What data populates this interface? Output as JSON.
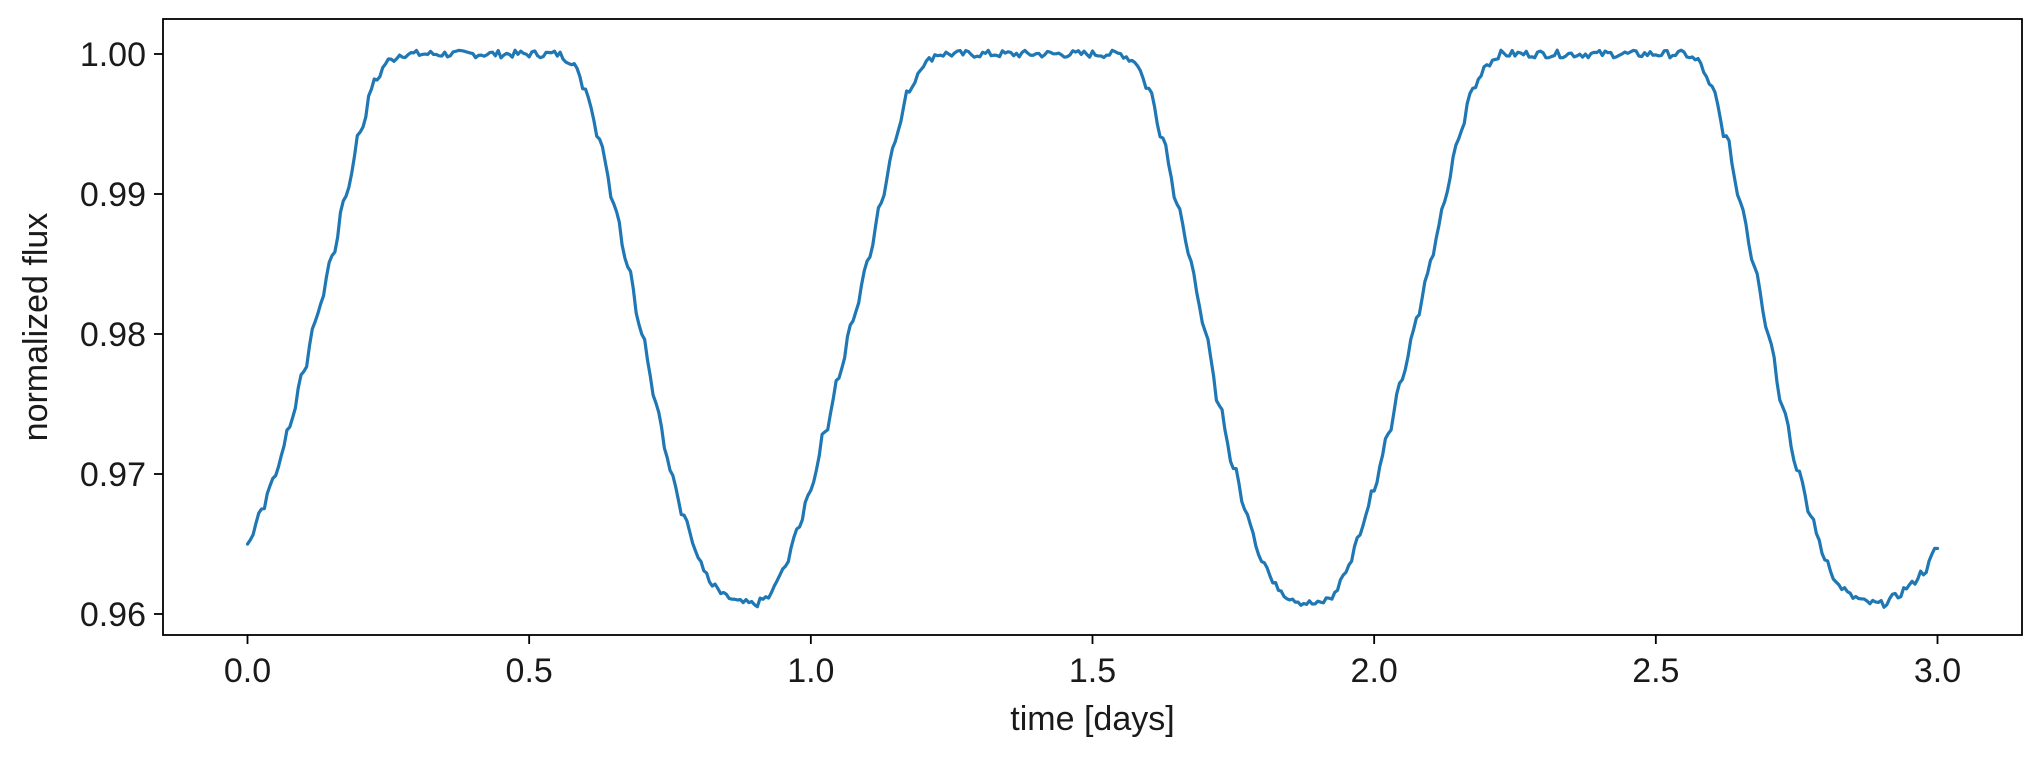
{
  "chart_data": {
    "type": "line",
    "title": "",
    "xlabel": "time [days]",
    "ylabel": "normalized flux",
    "xlim": [
      -0.15,
      3.15
    ],
    "ylim": [
      0.9585,
      1.0025
    ],
    "x_ticks": [
      0.0,
      0.5,
      1.0,
      1.5,
      2.0,
      2.5,
      3.0
    ],
    "x_tick_labels": [
      "0.0",
      "0.5",
      "1.0",
      "1.5",
      "2.0",
      "2.5",
      "3.0"
    ],
    "y_ticks": [
      0.96,
      0.97,
      0.98,
      0.99,
      1.0
    ],
    "y_tick_labels": [
      "0.96",
      "0.97",
      "0.98",
      "0.99",
      "1.00"
    ],
    "grid": false,
    "legend": "none",
    "line_color": "#1f77b4",
    "series": [
      {
        "x": [
          0.0,
          0.025,
          0.05,
          0.075,
          0.1,
          0.125,
          0.15,
          0.175,
          0.2,
          0.225,
          0.25,
          0.275,
          0.3,
          0.35,
          0.4,
          0.45,
          0.5,
          0.55,
          0.575,
          0.6,
          0.625,
          0.65,
          0.675,
          0.7,
          0.725,
          0.75,
          0.775,
          0.8,
          0.825,
          0.85,
          0.875,
          0.9,
          0.925,
          0.95,
          0.975,
          1.0,
          1.025,
          1.05,
          1.075,
          1.1,
          1.125,
          1.15,
          1.175,
          1.2,
          1.225,
          1.25,
          1.275,
          1.3,
          1.35,
          1.4,
          1.45,
          1.5,
          1.55,
          1.575,
          1.6,
          1.625,
          1.65,
          1.675,
          1.7,
          1.725,
          1.75,
          1.775,
          1.8,
          1.825,
          1.85,
          1.875,
          1.9,
          1.925,
          1.95,
          1.975,
          2.0,
          2.025,
          2.05,
          2.075,
          2.1,
          2.125,
          2.15,
          2.175,
          2.2,
          2.225,
          2.25,
          2.275,
          2.3,
          2.35,
          2.4,
          2.45,
          2.5,
          2.55,
          2.575,
          2.6,
          2.625,
          2.65,
          2.675,
          2.7,
          2.725,
          2.75,
          2.775,
          2.8,
          2.825,
          2.85,
          2.875,
          2.9,
          2.925,
          2.95,
          2.975,
          3.0
        ],
        "y": [
          0.965,
          0.9675,
          0.97,
          0.9735,
          0.9775,
          0.9815,
          0.9855,
          0.99,
          0.9945,
          0.998,
          0.9995,
          1.0,
          1.0,
          1.0,
          1.0,
          1.0,
          1.0,
          1.0,
          0.9995,
          0.9975,
          0.994,
          0.9895,
          0.985,
          0.98,
          0.975,
          0.9705,
          0.967,
          0.964,
          0.962,
          0.9612,
          0.9608,
          0.9607,
          0.9612,
          0.963,
          0.9658,
          0.969,
          0.973,
          0.977,
          0.981,
          0.985,
          0.9895,
          0.994,
          0.9975,
          0.9993,
          1.0,
          1.0,
          1.0,
          1.0,
          1.0,
          1.0,
          1.0,
          1.0,
          1.0,
          0.9995,
          0.9975,
          0.994,
          0.9895,
          0.985,
          0.98,
          0.975,
          0.9705,
          0.967,
          0.964,
          0.962,
          0.9612,
          0.9608,
          0.9607,
          0.9612,
          0.963,
          0.9658,
          0.969,
          0.973,
          0.977,
          0.981,
          0.985,
          0.9895,
          0.994,
          0.9975,
          0.9993,
          1.0,
          1.0,
          1.0,
          1.0,
          1.0,
          1.0,
          1.0,
          1.0,
          1.0,
          0.9995,
          0.9975,
          0.994,
          0.9895,
          0.985,
          0.98,
          0.975,
          0.9705,
          0.967,
          0.964,
          0.962,
          0.9612,
          0.9608,
          0.9607,
          0.9612,
          0.962,
          0.963,
          0.9647
        ]
      }
    ]
  }
}
